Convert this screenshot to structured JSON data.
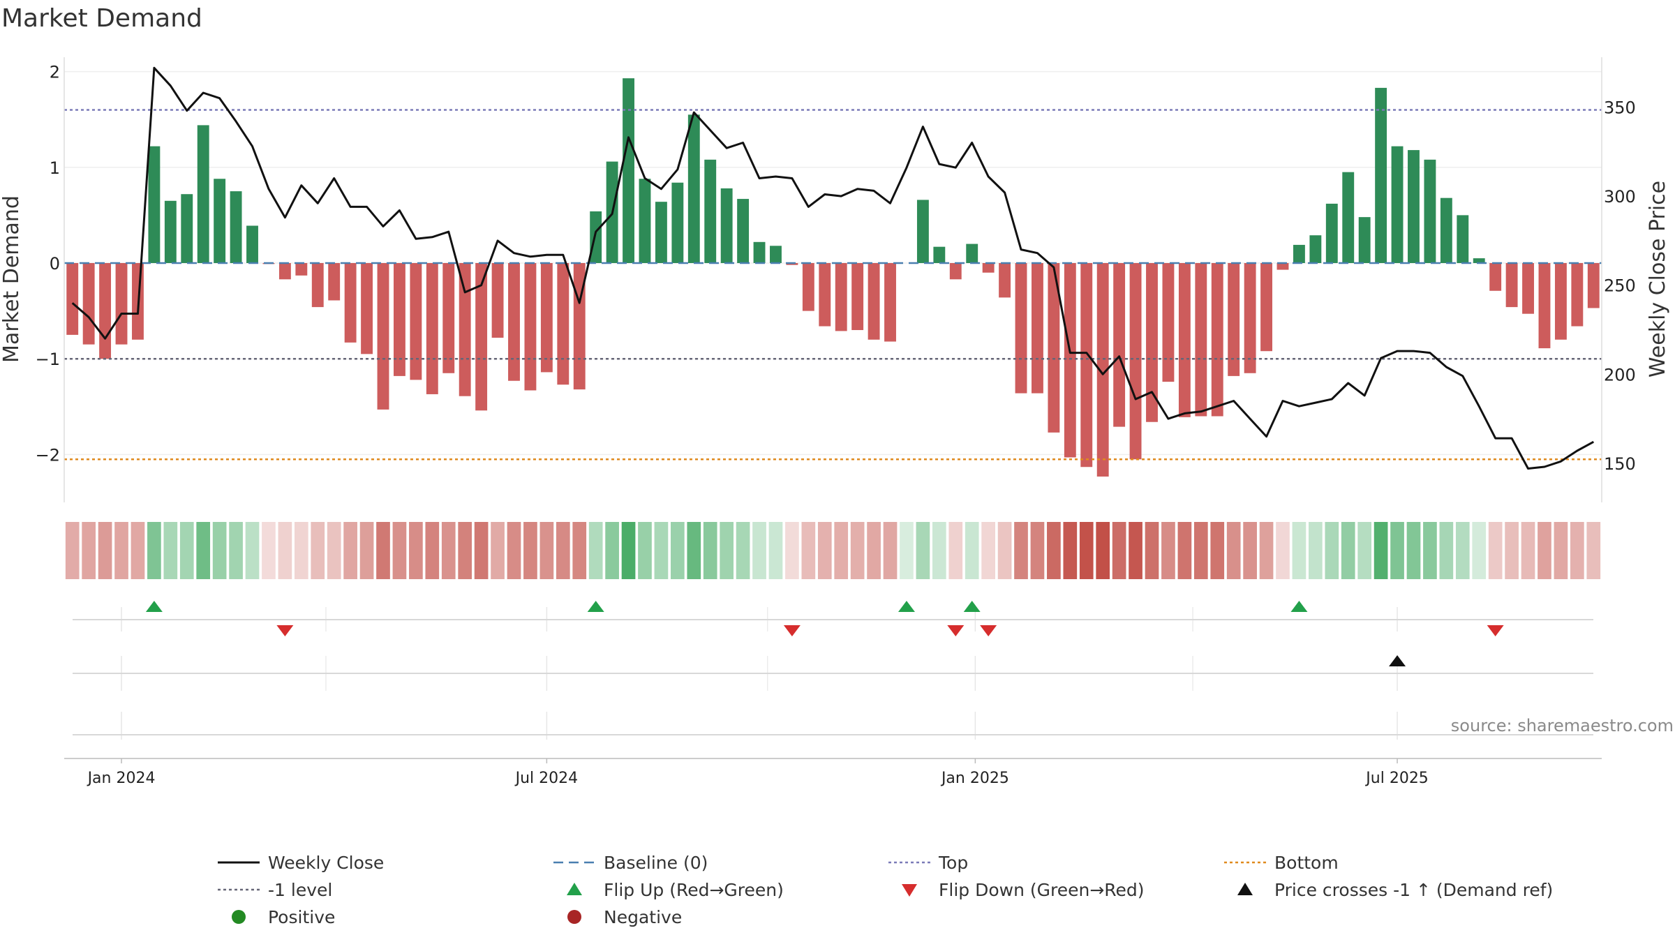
{
  "chart_data": {
    "type": "bar+line",
    "title": "Market Demand",
    "ylabel_left": "Market Demand",
    "ylabel_right": "Weekly Close Price",
    "left_ylim": [
      -2.5,
      2.15
    ],
    "right_ylim": [
      128,
      378
    ],
    "left_ticks": [
      {
        "v": 2,
        "t": "2"
      },
      {
        "v": 1,
        "t": "1"
      },
      {
        "v": 0,
        "t": "0"
      },
      {
        "v": -1,
        "t": "−1"
      },
      {
        "v": -2,
        "t": "−2"
      }
    ],
    "right_ticks": [
      350,
      300,
      250,
      200,
      150
    ],
    "x_ticks": [
      {
        "i": 3,
        "label": "Jan 2024"
      },
      {
        "i": 29,
        "label": "Jul 2024"
      },
      {
        "i": 55.2,
        "label": "Jan 2025"
      },
      {
        "i": 81,
        "label": "Jul 2025"
      }
    ],
    "x_range": [
      -0.5,
      93.5
    ],
    "reference_lines": {
      "baseline": 0,
      "top": 1.6,
      "minus_one": -1,
      "bottom": -2.05
    },
    "colors": {
      "positive": "#2e8b57",
      "negative": "#cd5c5c",
      "close": "#111111",
      "baseline": "#4a7fb0",
      "top": "#7b7bb8",
      "minus_one": "#666677",
      "bottom": "#e08a1e",
      "flip_up": "#22a04a",
      "flip_down": "#d62d2d",
      "cross": "#111111"
    },
    "demand": [
      -0.75,
      -0.85,
      -1.0,
      -0.85,
      -0.8,
      1.22,
      0.65,
      0.72,
      1.44,
      0.88,
      0.75,
      0.39,
      -0.01,
      -0.17,
      -0.13,
      -0.46,
      -0.39,
      -0.83,
      -0.95,
      -1.53,
      -1.18,
      -1.22,
      -1.37,
      -1.15,
      -1.39,
      -1.54,
      -0.78,
      -1.23,
      -1.33,
      -1.14,
      -1.27,
      -1.32,
      0.54,
      1.06,
      1.93,
      0.88,
      0.64,
      0.84,
      1.55,
      1.08,
      0.78,
      0.67,
      0.22,
      0.18,
      -0.02,
      -0.5,
      -0.66,
      -0.71,
      -0.7,
      -0.8,
      -0.82,
      0.0,
      0.66,
      0.17,
      -0.17,
      0.2,
      -0.1,
      -0.36,
      -1.36,
      -1.36,
      -1.77,
      -2.03,
      -2.13,
      -2.23,
      -1.71,
      -2.05,
      -1.66,
      -1.24,
      -1.61,
      -1.6,
      -1.6,
      -1.18,
      -1.15,
      -0.92,
      -0.07,
      0.19,
      0.29,
      0.62,
      0.95,
      0.48,
      1.83,
      1.22,
      1.18,
      1.08,
      0.68,
      0.5,
      0.05,
      -0.29,
      -0.46,
      -0.53,
      -0.89,
      -0.8,
      -0.66,
      -0.47
    ],
    "weekly_close": [
      240,
      232,
      220,
      234,
      234,
      372,
      362,
      348,
      358,
      355,
      342,
      328,
      304,
      288,
      306,
      296,
      310,
      294,
      294,
      283,
      292,
      276,
      277,
      280,
      246,
      250,
      275,
      268,
      266,
      267,
      267,
      240,
      280,
      290,
      333,
      310,
      304,
      315,
      347,
      337,
      327,
      330,
      310,
      311,
      310,
      294,
      301,
      300,
      304,
      303,
      296,
      316,
      339,
      318,
      316,
      330,
      311,
      302,
      270,
      268,
      260,
      212,
      212,
      200,
      210,
      186,
      190,
      175,
      178,
      179,
      182,
      185,
      175,
      165,
      185,
      182,
      184,
      186,
      195,
      188,
      209,
      213,
      213,
      212,
      204,
      199,
      182,
      164,
      164,
      147,
      148,
      151,
      157,
      162
    ],
    "positive_label": "Positive",
    "negative_label": "Negative",
    "flip_up_weeks": [
      5,
      32,
      51,
      55,
      75
    ],
    "flip_down_weeks": [
      13,
      44,
      54,
      56,
      87
    ],
    "price_cross_weeks": [
      81
    ],
    "source": "source: sharemaestro.com"
  },
  "legend": [
    {
      "key": "close",
      "label": "Weekly Close"
    },
    {
      "key": "baseline",
      "label": "Baseline (0)"
    },
    {
      "key": "top",
      "label": "Top"
    },
    {
      "key": "bottom",
      "label": "Bottom"
    },
    {
      "key": "minus_one",
      "label": "-1 level"
    },
    {
      "key": "flip_up",
      "label": "Flip Up (Red→Green)"
    },
    {
      "key": "flip_down",
      "label": "Flip Down (Green→Red)"
    },
    {
      "key": "cross",
      "label": "Price crosses -1 ↑ (Demand ref)"
    },
    {
      "key": "positive",
      "label": "Positive"
    },
    {
      "key": "negative",
      "label": "Negative"
    }
  ]
}
